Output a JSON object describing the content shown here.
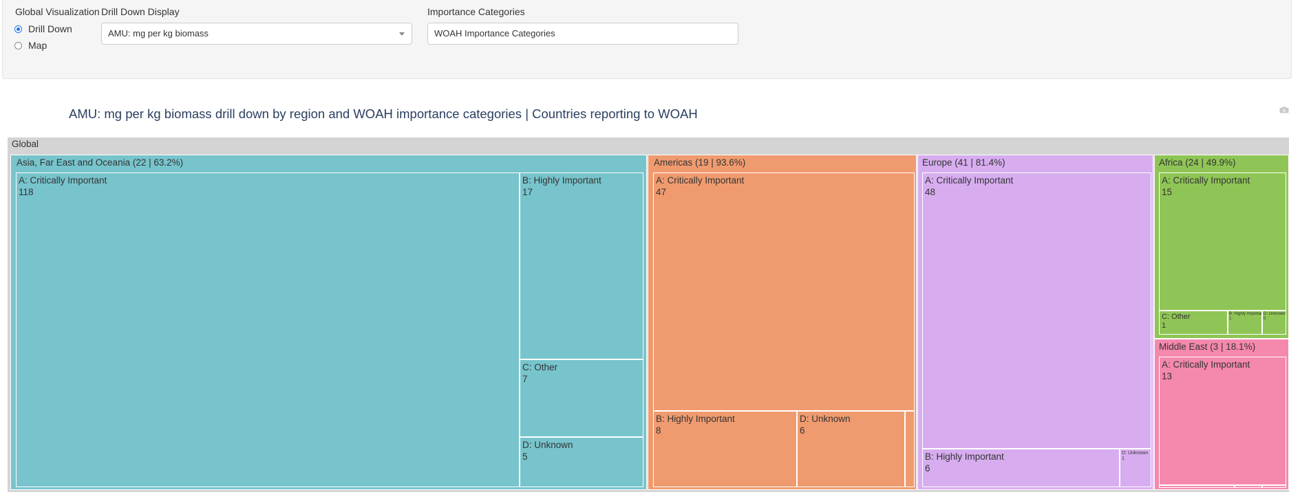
{
  "controls": {
    "global_label": "Global Visualization",
    "radio_drill": "Drill Down",
    "radio_map": "Map",
    "drill_label": "Drill Down Display",
    "drill_value": "AMU: mg per kg biomass",
    "importance_label": "Importance Categories",
    "importance_value": "WOAH Importance Categories"
  },
  "plot": {
    "title": "AMU: mg per kg biomass drill down by region and WOAH importance categories | Countries reporting to WOAH",
    "root_label": "Global"
  },
  "colors": {
    "root": "#d4d4d4",
    "asia": "#77c4cc",
    "americas": "#f09b6f",
    "europe": "#d7adf0",
    "africa": "#8fc556",
    "middle_east": "#f588ad"
  },
  "chart_data": {
    "type": "treemap",
    "root": "Global",
    "regions": [
      {
        "name": "Asia, Far East and Oceania (22 | 63.2%)",
        "categories": [
          {
            "name": "A: Critically Important",
            "value": "118"
          },
          {
            "name": "B: Highly Important",
            "value": "17"
          },
          {
            "name": "C: Other",
            "value": "7"
          },
          {
            "name": "D: Unknown",
            "value": "5"
          }
        ]
      },
      {
        "name": "Americas (19 | 93.6%)",
        "categories": [
          {
            "name": "A: Critically Important",
            "value": "47"
          },
          {
            "name": "B: Highly Important",
            "value": "8"
          },
          {
            "name": "D: Unknown",
            "value": "6"
          }
        ]
      },
      {
        "name": "Europe (41 | 81.4%)",
        "categories": [
          {
            "name": "A: Critically Important",
            "value": "48"
          },
          {
            "name": "B: Highly Important",
            "value": "6"
          },
          {
            "name": "D: Unknown",
            "value": "1"
          }
        ]
      },
      {
        "name": "Africa (24 | 49.9%)",
        "categories": [
          {
            "name": "A: Critically Important",
            "value": "15"
          },
          {
            "name": "C: Other",
            "value": "1"
          },
          {
            "name": "B: Highly Important",
            "value": "1"
          },
          {
            "name": "D: Unknown",
            "value": "0"
          }
        ]
      },
      {
        "name": "Middle East (3 | 18.1%)",
        "categories": [
          {
            "name": "A: Critically Important",
            "value": "13"
          }
        ]
      }
    ]
  }
}
